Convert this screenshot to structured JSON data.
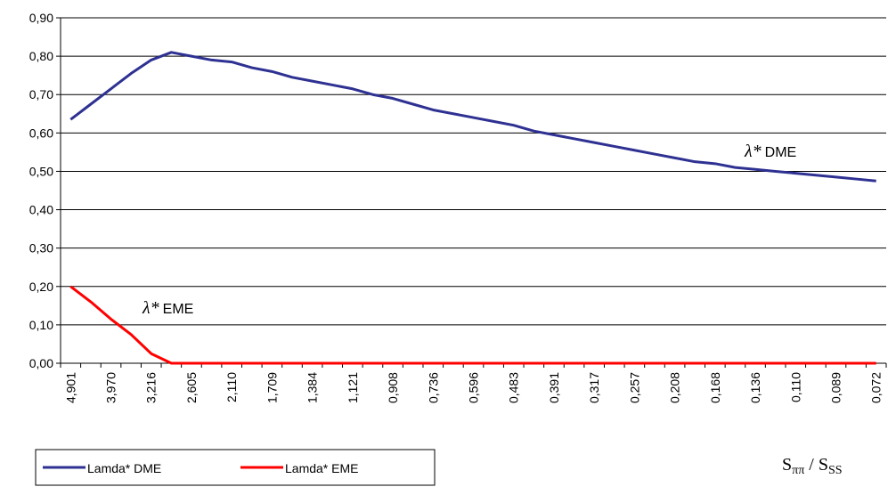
{
  "chart_data": {
    "type": "line",
    "categories": [
      "4,901",
      null,
      "3,970",
      null,
      "3,216",
      null,
      "2,605",
      null,
      "2,110",
      null,
      "1,709",
      null,
      "1,384",
      null,
      "1,121",
      null,
      "0,908",
      null,
      "0,736",
      null,
      "0,596",
      null,
      "0,483",
      null,
      "0,391",
      null,
      "0,317",
      null,
      "0,257",
      null,
      "0,208",
      null,
      "0,168",
      null,
      "0,136",
      null,
      "0,110",
      null,
      "0,089",
      null,
      "0,072"
    ],
    "series": [
      {
        "name": "Lamda* DME",
        "color": "#2e3192",
        "values": [
          0.635,
          0.675,
          0.715,
          0.755,
          0.79,
          0.81,
          0.8,
          0.79,
          0.785,
          0.77,
          0.76,
          0.745,
          0.735,
          0.725,
          0.715,
          0.7,
          0.69,
          0.675,
          0.66,
          0.65,
          0.64,
          0.63,
          0.62,
          0.605,
          0.595,
          0.585,
          0.575,
          0.565,
          0.555,
          0.545,
          0.535,
          0.525,
          0.52,
          0.51,
          0.505,
          0.5,
          0.495,
          0.49,
          0.485,
          0.48,
          0.475
        ]
      },
      {
        "name": "Lamda* EME",
        "color": "#ff0000",
        "values": [
          0.2,
          0.16,
          0.115,
          0.075,
          0.025,
          0,
          0,
          0,
          0,
          0,
          0,
          0,
          0,
          0,
          0,
          0,
          0,
          0,
          0,
          0,
          0,
          0,
          0,
          0,
          0,
          0,
          0,
          0,
          0,
          0,
          0,
          0,
          0,
          0,
          0,
          0,
          0,
          0,
          0,
          0,
          0
        ]
      }
    ],
    "ylim": [
      0,
      0.9
    ],
    "yticks": [
      {
        "value": 0,
        "label": "0,00"
      },
      {
        "value": 0.1,
        "label": "0,10"
      },
      {
        "value": 0.2,
        "label": "0,20"
      },
      {
        "value": 0.3,
        "label": "0,30"
      },
      {
        "value": 0.4,
        "label": "0,40"
      },
      {
        "value": 0.5,
        "label": "0,50"
      },
      {
        "value": 0.6,
        "label": "0,60"
      },
      {
        "value": 0.7,
        "label": "0,70"
      },
      {
        "value": 0.8,
        "label": "0,80"
      },
      {
        "value": 0.9,
        "label": "0,90"
      }
    ],
    "grid": true,
    "legend": "bottom-left",
    "annotations": [
      {
        "symbol": "λ*",
        "label": "DME"
      },
      {
        "symbol": "λ*",
        "label": "EME"
      }
    ],
    "x_label": [
      "S",
      "ππ",
      " / S",
      "SS"
    ]
  }
}
